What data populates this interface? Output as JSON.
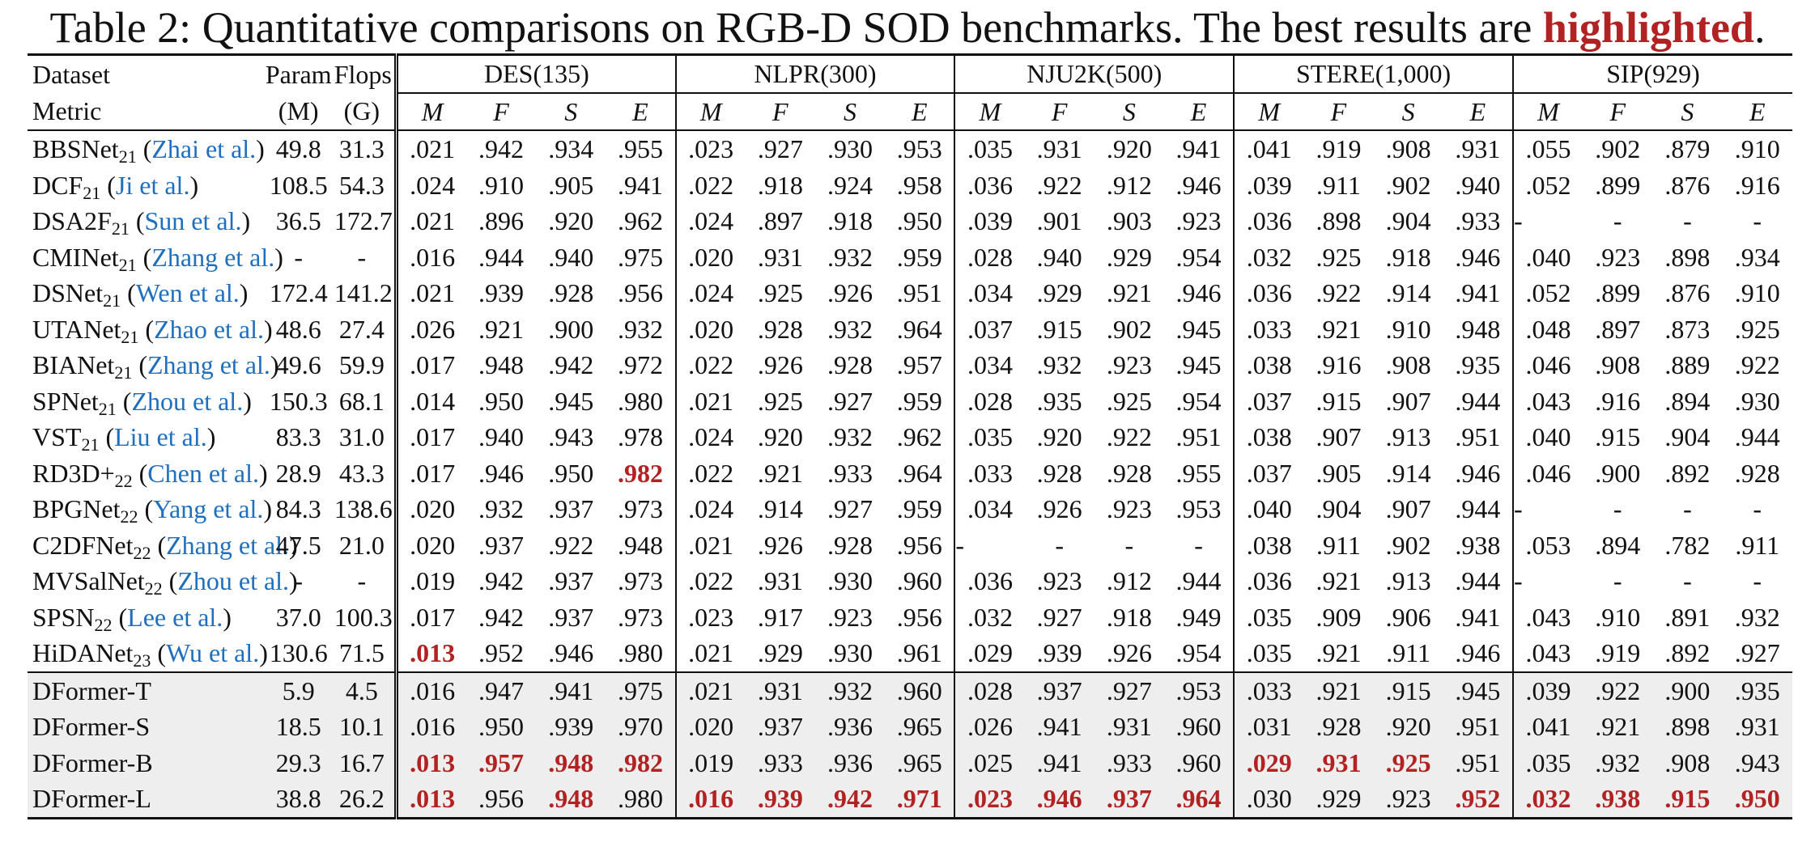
{
  "caption": {
    "prefix": "Table 2:",
    "text": " Quantitative comparisons on RGB-D SOD benchmarks. The best results are ",
    "highlight": "highlighted",
    "suffix": "."
  },
  "colors": {
    "highlight": "#b22222",
    "citation": "#1f6fbf",
    "ours_background": "#eeeeee"
  },
  "header": {
    "row1": {
      "dataset": "Dataset",
      "param": "Param",
      "flops": "Flops"
    },
    "row2": {
      "metric": "Metric",
      "param_unit": "(M)",
      "flops_unit": "(G)"
    },
    "datasets": [
      "DES(135)",
      "NLPR(300)",
      "NJU2K(500)",
      "STERE(1,000)",
      "SIP(929)"
    ],
    "metrics": [
      "M",
      "F",
      "S",
      "E"
    ]
  },
  "rows": [
    {
      "name": "BBSNet",
      "sub": "21",
      "cite": "Zhai et al.",
      "param": "49.8",
      "flops": "31.3",
      "values": [
        ".021",
        ".942",
        ".934",
        ".955",
        ".023",
        ".927",
        ".930",
        ".953",
        ".035",
        ".931",
        ".920",
        ".941",
        ".041",
        ".919",
        ".908",
        ".931",
        ".055",
        ".902",
        ".879",
        ".910"
      ],
      "best": []
    },
    {
      "name": "DCF",
      "sub": "21",
      "cite": "Ji et al.",
      "param": "108.5",
      "flops": "54.3",
      "values": [
        ".024",
        ".910",
        ".905",
        ".941",
        ".022",
        ".918",
        ".924",
        ".958",
        ".036",
        ".922",
        ".912",
        ".946",
        ".039",
        ".911",
        ".902",
        ".940",
        ".052",
        ".899",
        ".876",
        ".916"
      ],
      "best": []
    },
    {
      "name": "DSA2F",
      "sub": "21",
      "cite": "Sun et al.",
      "param": "36.5",
      "flops": "172.7",
      "values": [
        ".021",
        ".896",
        ".920",
        ".962",
        ".024",
        ".897",
        ".918",
        ".950",
        ".039",
        ".901",
        ".903",
        ".923",
        ".036",
        ".898",
        ".904",
        ".933",
        "-",
        "-",
        "-",
        "-"
      ],
      "best": []
    },
    {
      "name": "CMINet",
      "sub": "21",
      "cite": "Zhang et al.",
      "param": "-",
      "flops": "-",
      "values": [
        ".016",
        ".944",
        ".940",
        ".975",
        ".020",
        ".931",
        ".932",
        ".959",
        ".028",
        ".940",
        ".929",
        ".954",
        ".032",
        ".925",
        ".918",
        ".946",
        ".040",
        ".923",
        ".898",
        ".934"
      ],
      "best": []
    },
    {
      "name": "DSNet",
      "sub": "21",
      "cite": "Wen et al.",
      "param": "172.4",
      "flops": "141.2",
      "values": [
        ".021",
        ".939",
        ".928",
        ".956",
        ".024",
        ".925",
        ".926",
        ".951",
        ".034",
        ".929",
        ".921",
        ".946",
        ".036",
        ".922",
        ".914",
        ".941",
        ".052",
        ".899",
        ".876",
        ".910"
      ],
      "best": []
    },
    {
      "name": "UTANet",
      "sub": "21",
      "cite": "Zhao et al.",
      "param": "48.6",
      "flops": "27.4",
      "values": [
        ".026",
        ".921",
        ".900",
        ".932",
        ".020",
        ".928",
        ".932",
        ".964",
        ".037",
        ".915",
        ".902",
        ".945",
        ".033",
        ".921",
        ".910",
        ".948",
        ".048",
        ".897",
        ".873",
        ".925"
      ],
      "best": []
    },
    {
      "name": "BIANet",
      "sub": "21",
      "cite": "Zhang et al.",
      "param": "49.6",
      "flops": "59.9",
      "values": [
        ".017",
        ".948",
        ".942",
        ".972",
        ".022",
        ".926",
        ".928",
        ".957",
        ".034",
        ".932",
        ".923",
        ".945",
        ".038",
        ".916",
        ".908",
        ".935",
        ".046",
        ".908",
        ".889",
        ".922"
      ],
      "best": []
    },
    {
      "name": "SPNet",
      "sub": "21",
      "cite": "Zhou et al.",
      "param": "150.3",
      "flops": "68.1",
      "values": [
        ".014",
        ".950",
        ".945",
        ".980",
        ".021",
        ".925",
        ".927",
        ".959",
        ".028",
        ".935",
        ".925",
        ".954",
        ".037",
        ".915",
        ".907",
        ".944",
        ".043",
        ".916",
        ".894",
        ".930"
      ],
      "best": []
    },
    {
      "name": "VST",
      "sub": "21",
      "cite": "Liu et al.",
      "param": "83.3",
      "flops": "31.0",
      "values": [
        ".017",
        ".940",
        ".943",
        ".978",
        ".024",
        ".920",
        ".932",
        ".962",
        ".035",
        ".920",
        ".922",
        ".951",
        ".038",
        ".907",
        ".913",
        ".951",
        ".040",
        ".915",
        ".904",
        ".944"
      ],
      "best": []
    },
    {
      "name": "RD3D+",
      "sub": "22",
      "cite": "Chen et al.",
      "param": "28.9",
      "flops": "43.3",
      "values": [
        ".017",
        ".946",
        ".950",
        ".982",
        ".022",
        ".921",
        ".933",
        ".964",
        ".033",
        ".928",
        ".928",
        ".955",
        ".037",
        ".905",
        ".914",
        ".946",
        ".046",
        ".900",
        ".892",
        ".928"
      ],
      "best": [
        3
      ]
    },
    {
      "name": "BPGNet",
      "sub": "22",
      "cite": "Yang et al.",
      "param": "84.3",
      "flops": "138.6",
      "values": [
        ".020",
        ".932",
        ".937",
        ".973",
        ".024",
        ".914",
        ".927",
        ".959",
        ".034",
        ".926",
        ".923",
        ".953",
        ".040",
        ".904",
        ".907",
        ".944",
        "-",
        "-",
        "-",
        "-"
      ],
      "best": []
    },
    {
      "name": "C2DFNet",
      "sub": "22",
      "cite": "Zhang et al.",
      "param": "47.5",
      "flops": "21.0",
      "values": [
        ".020",
        ".937",
        ".922",
        ".948",
        ".021",
        ".926",
        ".928",
        ".956",
        "-",
        "-",
        "-",
        "-",
        ".038",
        ".911",
        ".902",
        ".938",
        ".053",
        ".894",
        ".782",
        ".911"
      ],
      "best": []
    },
    {
      "name": "MVSalNet",
      "sub": "22",
      "cite": "Zhou et al.",
      "param": "-",
      "flops": "-",
      "values": [
        ".019",
        ".942",
        ".937",
        ".973",
        ".022",
        ".931",
        ".930",
        ".960",
        ".036",
        ".923",
        ".912",
        ".944",
        ".036",
        ".921",
        ".913",
        ".944",
        "-",
        "-",
        "-",
        "-"
      ],
      "best": []
    },
    {
      "name": "SPSN",
      "sub": "22",
      "cite": "Lee et al.",
      "param": "37.0",
      "flops": "100.3",
      "values": [
        ".017",
        ".942",
        ".937",
        ".973",
        ".023",
        ".917",
        ".923",
        ".956",
        ".032",
        ".927",
        ".918",
        ".949",
        ".035",
        ".909",
        ".906",
        ".941",
        ".043",
        ".910",
        ".891",
        ".932"
      ],
      "best": []
    },
    {
      "name": "HiDANet",
      "sub": "23",
      "cite": "Wu et al.",
      "param": "130.6",
      "flops": "71.5",
      "values": [
        ".013",
        ".952",
        ".946",
        ".980",
        ".021",
        ".929",
        ".930",
        ".961",
        ".029",
        ".939",
        ".926",
        ".954",
        ".035",
        ".921",
        ".911",
        ".946",
        ".043",
        ".919",
        ".892",
        ".927"
      ],
      "best": [
        0
      ]
    }
  ],
  "ours": [
    {
      "name": "DFormer-T",
      "param": "5.9",
      "flops": "4.5",
      "values": [
        ".016",
        ".947",
        ".941",
        ".975",
        ".021",
        ".931",
        ".932",
        ".960",
        ".028",
        ".937",
        ".927",
        ".953",
        ".033",
        ".921",
        ".915",
        ".945",
        ".039",
        ".922",
        ".900",
        ".935"
      ],
      "best": []
    },
    {
      "name": "DFormer-S",
      "param": "18.5",
      "flops": "10.1",
      "values": [
        ".016",
        ".950",
        ".939",
        ".970",
        ".020",
        ".937",
        ".936",
        ".965",
        ".026",
        ".941",
        ".931",
        ".960",
        ".031",
        ".928",
        ".920",
        ".951",
        ".041",
        ".921",
        ".898",
        ".931"
      ],
      "best": []
    },
    {
      "name": "DFormer-B",
      "param": "29.3",
      "flops": "16.7",
      "values": [
        ".013",
        ".957",
        ".948",
        ".982",
        ".019",
        ".933",
        ".936",
        ".965",
        ".025",
        ".941",
        ".933",
        ".960",
        ".029",
        ".931",
        ".925",
        ".951",
        ".035",
        ".932",
        ".908",
        ".943"
      ],
      "best": [
        0,
        1,
        2,
        3,
        12,
        13,
        14
      ]
    },
    {
      "name": "DFormer-L",
      "param": "38.8",
      "flops": "26.2",
      "values": [
        ".013",
        ".956",
        ".948",
        ".980",
        ".016",
        ".939",
        ".942",
        ".971",
        ".023",
        ".946",
        ".937",
        ".964",
        ".030",
        ".929",
        ".923",
        ".952",
        ".032",
        ".938",
        ".915",
        ".950"
      ],
      "best": [
        0,
        2,
        4,
        5,
        6,
        7,
        8,
        9,
        10,
        11,
        15,
        16,
        17,
        18,
        19
      ]
    }
  ]
}
